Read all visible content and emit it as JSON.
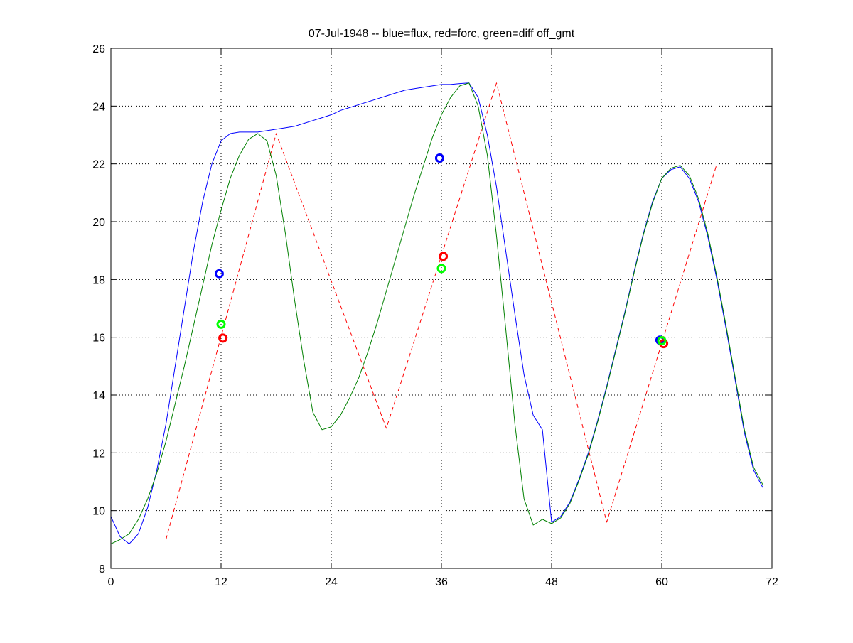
{
  "chart_data": {
    "type": "line",
    "title": "07-Jul-1948 -- blue=flux, red=forc, green=diff off_gmt",
    "xlabel": "",
    "ylabel": "",
    "xlim": [
      0,
      72
    ],
    "ylim": [
      8,
      26
    ],
    "xticks": [
      0,
      12,
      24,
      36,
      48,
      60,
      72
    ],
    "yticks": [
      8,
      10,
      12,
      14,
      16,
      18,
      20,
      22,
      24,
      26
    ],
    "grid": true,
    "legend": "none",
    "series": [
      {
        "color": "#0000ff",
        "style": "solid",
        "x": [
          0,
          1,
          2,
          3,
          4,
          5,
          6,
          7,
          8,
          9,
          10,
          11,
          12,
          13,
          14,
          15,
          16,
          17,
          18,
          19,
          20,
          21,
          22,
          23,
          24,
          25,
          26,
          27,
          28,
          29,
          30,
          31,
          32,
          33,
          34,
          35,
          36,
          37,
          38,
          39,
          40,
          41,
          42,
          43,
          44,
          45,
          46,
          47,
          48,
          49,
          50,
          51,
          52,
          53,
          54,
          55,
          56,
          57,
          58,
          59,
          60,
          61,
          62,
          63,
          64,
          65,
          66,
          67,
          68,
          69,
          70,
          71
        ],
        "y": [
          9.8,
          9.1,
          8.85,
          9.2,
          10.1,
          11.4,
          13.0,
          15.0,
          17.0,
          19.0,
          20.7,
          22.0,
          22.8,
          23.05,
          23.1,
          23.1,
          23.1,
          23.15,
          23.2,
          23.25,
          23.3,
          23.4,
          23.5,
          23.6,
          23.7,
          23.85,
          23.95,
          24.05,
          24.15,
          24.25,
          24.35,
          24.45,
          24.55,
          24.6,
          24.65,
          24.7,
          24.75,
          24.75,
          24.78,
          24.8,
          24.3,
          23.0,
          21.2,
          19.0,
          16.8,
          14.7,
          13.3,
          12.8,
          9.6,
          9.8,
          10.3,
          11.1,
          12.0,
          13.1,
          14.3,
          15.6,
          16.9,
          18.3,
          19.6,
          20.7,
          21.5,
          21.8,
          21.9,
          21.5,
          20.7,
          19.5,
          18.0,
          16.3,
          14.5,
          12.7,
          11.4,
          10.8
        ]
      },
      {
        "color": "#ff0000",
        "style": "dashed",
        "x": [
          6,
          18,
          30,
          42,
          54,
          66
        ],
        "y": [
          9.0,
          23.05,
          12.85,
          24.8,
          9.6,
          22.0
        ]
      },
      {
        "color": "#008000",
        "style": "solid",
        "x": [
          0,
          1,
          2,
          3,
          4,
          5,
          6,
          7,
          8,
          9,
          10,
          11,
          12,
          13,
          14,
          15,
          16,
          17,
          18,
          19,
          20,
          21,
          22,
          23,
          24,
          25,
          26,
          27,
          28,
          29,
          30,
          31,
          32,
          33,
          34,
          35,
          36,
          37,
          38,
          39,
          40,
          41,
          42,
          43,
          44,
          45,
          46,
          47,
          48,
          49,
          50,
          51,
          52,
          53,
          54,
          55,
          56,
          57,
          58,
          59,
          60,
          61,
          62,
          63,
          64,
          65,
          66,
          67,
          68,
          69,
          70,
          71
        ],
        "y": [
          8.85,
          9.0,
          9.2,
          9.7,
          10.4,
          11.3,
          12.4,
          13.7,
          15.0,
          16.4,
          17.8,
          19.2,
          20.4,
          21.5,
          22.3,
          22.85,
          23.05,
          22.8,
          21.6,
          19.6,
          17.3,
          15.2,
          13.4,
          12.8,
          12.9,
          13.3,
          13.9,
          14.6,
          15.5,
          16.5,
          17.6,
          18.7,
          19.8,
          20.9,
          21.9,
          22.9,
          23.7,
          24.3,
          24.7,
          24.8,
          24.0,
          22.3,
          19.5,
          16.3,
          13.0,
          10.4,
          9.5,
          9.7,
          9.55,
          9.75,
          10.25,
          11.05,
          11.95,
          13.05,
          14.25,
          15.55,
          16.85,
          18.25,
          19.55,
          20.65,
          21.5,
          21.85,
          21.95,
          21.6,
          20.8,
          19.6,
          18.1,
          16.4,
          14.6,
          12.8,
          11.5,
          10.9
        ]
      }
    ],
    "markers": [
      {
        "color": "#0000ff",
        "size": "large",
        "x": 11.8,
        "y": 18.2
      },
      {
        "color": "#00ff00",
        "size": "large",
        "x": 12.0,
        "y": 16.45
      },
      {
        "color": "#ff0000",
        "size": "large",
        "x": 12.2,
        "y": 15.97
      },
      {
        "color": "#0000ff",
        "size": "large",
        "x": 35.8,
        "y": 22.2
      },
      {
        "color": "#ff0000",
        "size": "large",
        "x": 36.2,
        "y": 18.8
      },
      {
        "color": "#00ff00",
        "size": "large",
        "x": 36.0,
        "y": 18.38
      },
      {
        "color": "#0000ff",
        "size": "large",
        "x": 59.8,
        "y": 15.9
      },
      {
        "color": "#ff0000",
        "size": "large",
        "x": 60.2,
        "y": 15.78
      },
      {
        "color": "#00ff00",
        "size": "large",
        "x": 60.0,
        "y": 15.88
      }
    ]
  }
}
